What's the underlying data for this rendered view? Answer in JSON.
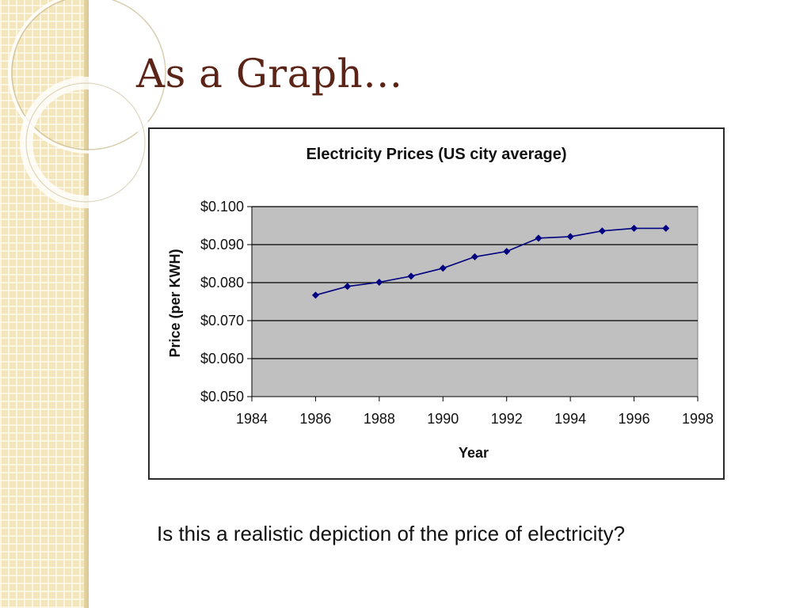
{
  "slide": {
    "title": "As a Graph…",
    "caption": "Is this a realistic depiction of the price of electricity?"
  },
  "colors": {
    "title": "#5b2417",
    "plot_background": "#c0c0c0",
    "series_line": "#000080",
    "gridline": "#000000"
  },
  "chart_data": {
    "type": "line",
    "title": "Electricity Prices (US city average)",
    "xlabel": "Year",
    "ylabel": "Price (per KWH)",
    "xlim": [
      1984,
      1998
    ],
    "ylim": [
      0.05,
      0.1
    ],
    "x_ticks": [
      "1984",
      "1986",
      "1988",
      "1990",
      "1992",
      "1994",
      "1996",
      "1998"
    ],
    "y_ticks": [
      "$0.050",
      "$0.060",
      "$0.070",
      "$0.080",
      "$0.090",
      "$0.100"
    ],
    "grid": "horizontal",
    "legend": "none",
    "marker": "diamond",
    "series": [
      {
        "x": [
          1986,
          1987,
          1988,
          1989,
          1990,
          1991,
          1992,
          1993,
          1994,
          1995,
          1996,
          1997
        ],
        "values": [
          0.0767,
          0.079,
          0.0801,
          0.0817,
          0.0838,
          0.0868,
          0.0882,
          0.0917,
          0.0921,
          0.0936,
          0.0943,
          0.0943
        ]
      }
    ]
  }
}
